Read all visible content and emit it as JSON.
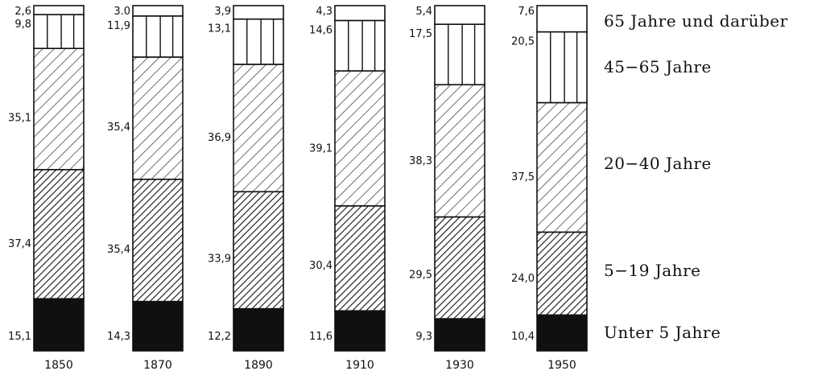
{
  "chart_data": {
    "type": "bar",
    "stacked": true,
    "normalized": true,
    "categories": [
      "1850",
      "1870",
      "1890",
      "1910",
      "1930",
      "1950"
    ],
    "series": [
      {
        "name": "Unter 5 Jahre",
        "pattern": "solid",
        "values": [
          15.1,
          14.3,
          12.2,
          11.6,
          9.3,
          10.4
        ],
        "labels": [
          "15,1",
          "14,3",
          "12,2",
          "11,6",
          "9,3",
          "10,4"
        ]
      },
      {
        "name": "5−19 Jahre",
        "pattern": "dense-hatch",
        "values": [
          37.4,
          35.4,
          33.9,
          30.4,
          29.5,
          24.0
        ],
        "labels": [
          "37,4",
          "35,4",
          "33,9",
          "30,4",
          "29,5",
          "24,0"
        ]
      },
      {
        "name": "20−40 Jahre",
        "pattern": "wide-hatch",
        "values": [
          35.1,
          35.4,
          36.9,
          39.1,
          38.3,
          37.5
        ],
        "labels": [
          "35,1",
          "35,4",
          "36,9",
          "39,1",
          "38,3",
          "37,5"
        ]
      },
      {
        "name": "45−65 Jahre",
        "pattern": "vertical-lines",
        "values": [
          9.8,
          11.9,
          13.1,
          14.6,
          17.5,
          20.5
        ],
        "labels": [
          "9,8",
          "11,9",
          "13,1",
          "14,6",
          "17,5",
          "20,5"
        ]
      },
      {
        "name": "65 Jahre und darüber",
        "pattern": "blank",
        "values": [
          2.6,
          3.0,
          3.9,
          4.3,
          5.4,
          7.6
        ],
        "labels": [
          "2,6",
          "3.0",
          "3,9",
          "4,3",
          "5,4",
          "7,6"
        ]
      }
    ],
    "legend_position": "right",
    "grid": false
  }
}
